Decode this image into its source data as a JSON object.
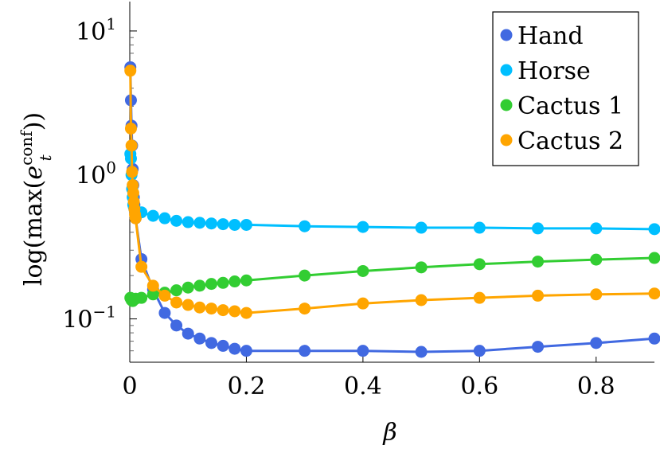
{
  "chart_data": {
    "type": "line",
    "xlabel": "β",
    "ylabel": "log(max(e_t^conf))",
    "ylabel_parts": {
      "pre": "log(max(",
      "base": "e",
      "sup": "conf",
      "sub": "t",
      "post": "))"
    },
    "y_scale": "log",
    "xlim": [
      0,
      0.9
    ],
    "ylim": [
      0.05,
      16
    ],
    "x_ticks": [
      {
        "value": 0,
        "label": "0"
      },
      {
        "value": 0.2,
        "label": "0.2"
      },
      {
        "value": 0.4,
        "label": "0.4"
      },
      {
        "value": 0.6,
        "label": "0.6"
      },
      {
        "value": 0.8,
        "label": "0.8"
      }
    ],
    "y_ticks": [
      {
        "value": 10,
        "base": "10",
        "exp": "1"
      },
      {
        "value": 1,
        "base": "10",
        "exp": "0"
      },
      {
        "value": 0.1,
        "base": "10",
        "exp": "−1"
      }
    ],
    "grid": false,
    "legend_position": "top-right",
    "series": [
      {
        "name": "Hand",
        "color": "#4169e1",
        "x": [
          0.001,
          0.002,
          0.003,
          0.004,
          0.005,
          0.006,
          0.007,
          0.008,
          0.009,
          0.01,
          0.02,
          0.04,
          0.06,
          0.08,
          0.1,
          0.12,
          0.14,
          0.16,
          0.18,
          0.2,
          0.3,
          0.4,
          0.5,
          0.6,
          0.7,
          0.8,
          0.9
        ],
        "y": [
          5.6,
          3.3,
          2.2,
          1.6,
          1.1,
          0.85,
          0.7,
          0.62,
          0.55,
          0.5,
          0.26,
          0.16,
          0.11,
          0.09,
          0.079,
          0.073,
          0.068,
          0.065,
          0.062,
          0.06,
          0.06,
          0.06,
          0.059,
          0.06,
          0.064,
          0.068,
          0.073
        ]
      },
      {
        "name": "Horse",
        "color": "#00bfff",
        "x": [
          0.001,
          0.002,
          0.003,
          0.004,
          0.005,
          0.006,
          0.007,
          0.008,
          0.009,
          0.01,
          0.02,
          0.04,
          0.06,
          0.08,
          0.1,
          0.12,
          0.14,
          0.16,
          0.18,
          0.2,
          0.3,
          0.4,
          0.5,
          0.6,
          0.7,
          0.8,
          0.9
        ],
        "y": [
          1.4,
          1.3,
          1.0,
          0.8,
          0.7,
          0.62,
          0.6,
          0.58,
          0.57,
          0.56,
          0.55,
          0.52,
          0.5,
          0.48,
          0.47,
          0.465,
          0.46,
          0.455,
          0.45,
          0.45,
          0.44,
          0.435,
          0.43,
          0.43,
          0.425,
          0.425,
          0.42
        ]
      },
      {
        "name": "Cactus 1",
        "color": "#32cd32",
        "x": [
          0.001,
          0.003,
          0.005,
          0.01,
          0.02,
          0.04,
          0.06,
          0.08,
          0.1,
          0.12,
          0.14,
          0.16,
          0.18,
          0.2,
          0.3,
          0.4,
          0.5,
          0.6,
          0.7,
          0.8,
          0.9
        ],
        "y": [
          0.14,
          0.135,
          0.133,
          0.138,
          0.14,
          0.148,
          0.152,
          0.158,
          0.165,
          0.17,
          0.175,
          0.178,
          0.182,
          0.185,
          0.2,
          0.215,
          0.228,
          0.24,
          0.25,
          0.258,
          0.265
        ]
      },
      {
        "name": "Cactus 2",
        "color": "#ffa500",
        "x": [
          0.001,
          0.002,
          0.003,
          0.004,
          0.005,
          0.006,
          0.007,
          0.008,
          0.009,
          0.01,
          0.02,
          0.04,
          0.06,
          0.08,
          0.1,
          0.12,
          0.14,
          0.16,
          0.18,
          0.2,
          0.3,
          0.4,
          0.5,
          0.6,
          0.7,
          0.8,
          0.9
        ],
        "y": [
          5.3,
          2.1,
          1.6,
          1.05,
          0.85,
          0.75,
          0.65,
          0.58,
          0.53,
          0.5,
          0.23,
          0.17,
          0.145,
          0.13,
          0.125,
          0.12,
          0.118,
          0.115,
          0.113,
          0.11,
          0.118,
          0.128,
          0.135,
          0.14,
          0.145,
          0.148,
          0.15
        ]
      }
    ]
  }
}
